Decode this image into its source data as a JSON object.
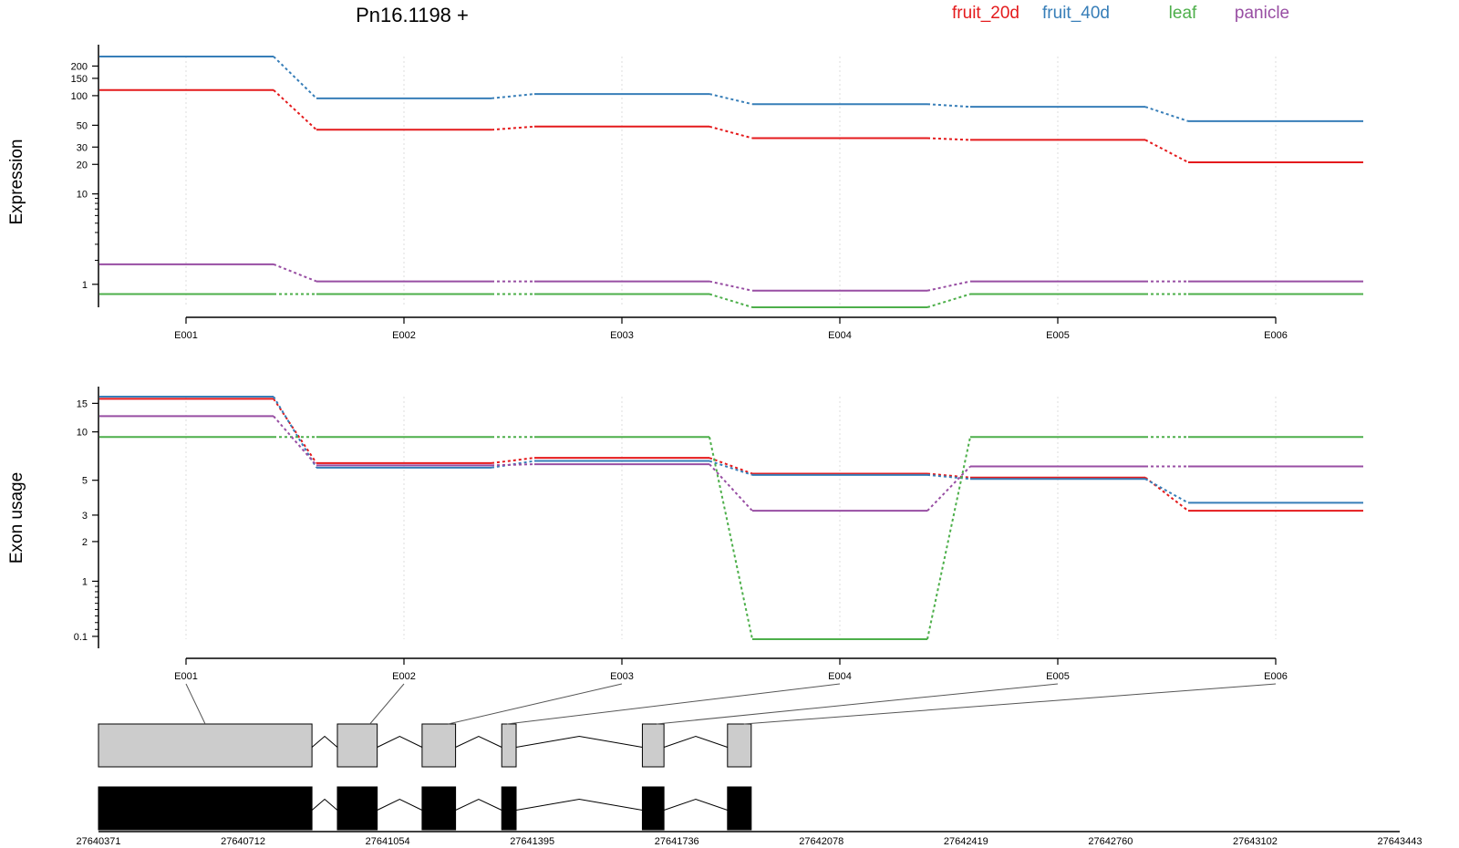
{
  "title": "Pn16.1198 +",
  "legend": [
    {
      "label": "fruit_20d",
      "color": "#e41a1c"
    },
    {
      "label": "fruit_40d",
      "color": "#377eb8"
    },
    {
      "label": "leaf",
      "color": "#4daf4a"
    },
    {
      "label": "panicle",
      "color": "#984ea3"
    }
  ],
  "chart_data": [
    {
      "type": "line",
      "ylabel": "Expression",
      "categories": [
        "E001",
        "E002",
        "E003",
        "E004",
        "E005",
        "E006"
      ],
      "yticks": [
        "1",
        "10",
        "20",
        "30",
        "50",
        "100",
        "150",
        "200"
      ],
      "series": [
        {
          "name": "fruit_20d",
          "values": [
            114,
            45,
            48.5,
            37,
            35.5,
            21
          ]
        },
        {
          "name": "fruit_40d",
          "values": [
            250,
            94,
            104,
            82,
            77,
            55
          ]
        },
        {
          "name": "leaf",
          "values": [
            0.7,
            0.7,
            0.7,
            0.35,
            0.7,
            0.7
          ]
        },
        {
          "name": "panicle",
          "values": [
            1.8,
            1.1,
            1.1,
            0.8,
            1.1,
            1.1
          ]
        }
      ]
    },
    {
      "type": "line",
      "ylabel": "Exon usage",
      "categories": [
        "E001",
        "E002",
        "E003",
        "E004",
        "E005",
        "E006"
      ],
      "yticks": [
        "0.1",
        "1",
        "2",
        "3",
        "5",
        "10",
        "15"
      ],
      "series": [
        {
          "name": "fruit_20d",
          "values": [
            16,
            6.4,
            6.9,
            5.5,
            5.2,
            3.2
          ]
        },
        {
          "name": "fruit_40d",
          "values": [
            16.5,
            6.0,
            6.6,
            5.4,
            5.1,
            3.6
          ]
        },
        {
          "name": "leaf",
          "values": [
            9.3,
            9.3,
            9.3,
            0.06,
            9.3,
            9.3
          ]
        },
        {
          "name": "panicle",
          "values": [
            12.5,
            6.2,
            6.3,
            3.2,
            6.1,
            6.1
          ]
        }
      ]
    }
  ],
  "gene_model": {
    "coordinates": [
      "27640371",
      "27640712",
      "27641054",
      "27641395",
      "27641736",
      "27642078",
      "27642419",
      "27642760",
      "27643102",
      "27643443"
    ],
    "exon_labels": [
      "E001",
      "E002",
      "E003",
      "E004",
      "E005",
      "E006"
    ],
    "exons": [
      {
        "start": 27640371,
        "end": 27640875
      },
      {
        "start": 27640935,
        "end": 27641029
      },
      {
        "start": 27641135,
        "end": 27641214
      },
      {
        "start": 27641323,
        "end": 27641357
      },
      {
        "start": 27641655,
        "end": 27641706
      },
      {
        "start": 27641856,
        "end": 27641912
      }
    ],
    "range": [
      27640371,
      27643443
    ]
  }
}
